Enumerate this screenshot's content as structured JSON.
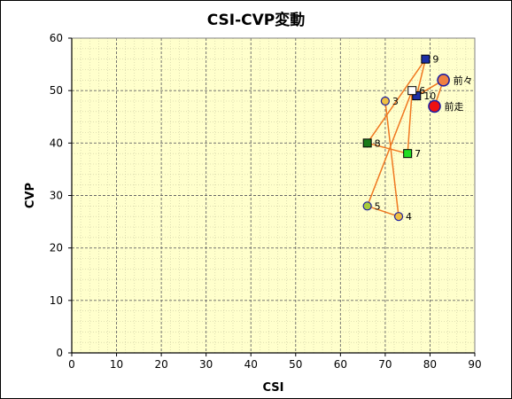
{
  "chart_data": {
    "type": "scatter",
    "title": "CSI-CVP変動",
    "xlabel": "CSI",
    "ylabel": "CVP",
    "xlim": [
      0,
      90
    ],
    "ylim": [
      0,
      60
    ],
    "xticks": [
      0,
      10,
      20,
      30,
      40,
      50,
      60,
      70,
      80,
      90
    ],
    "yticks": [
      0,
      10,
      20,
      30,
      40,
      50,
      60
    ],
    "grid": true,
    "background_color": "#ffffcc",
    "line_color": "#f07820",
    "points": [
      {
        "label": "10",
        "x": 77,
        "y": 49,
        "marker": "square",
        "fill": "#1c2fa6"
      },
      {
        "label": "9",
        "x": 79,
        "y": 56,
        "marker": "square",
        "fill": "#1c2fa6"
      },
      {
        "label": "8",
        "x": 66,
        "y": 40,
        "marker": "square",
        "fill": "#1a7a1a"
      },
      {
        "label": "7",
        "x": 75,
        "y": 38,
        "marker": "square",
        "fill": "#22dd22"
      },
      {
        "label": "6",
        "x": 76,
        "y": 50,
        "marker": "square",
        "fill": "#ffffff"
      },
      {
        "label": "5",
        "x": 66,
        "y": 28,
        "marker": "circle",
        "fill": "#a8cc3a"
      },
      {
        "label": "4",
        "x": 73,
        "y": 26,
        "marker": "circle",
        "fill": "#f0c040"
      },
      {
        "label": "3",
        "x": 70,
        "y": 48,
        "marker": "circle",
        "fill": "#f0c040"
      },
      {
        "label": "前々",
        "x": 83,
        "y": 52,
        "marker": "circle",
        "fill": "#f08040"
      },
      {
        "label": "前走",
        "x": 81,
        "y": 47,
        "marker": "circle",
        "fill": "#ee1111"
      }
    ],
    "path_order": [
      "3",
      "4",
      "5",
      "6",
      "7",
      "8",
      "9",
      "10",
      "前々",
      "前走"
    ]
  }
}
